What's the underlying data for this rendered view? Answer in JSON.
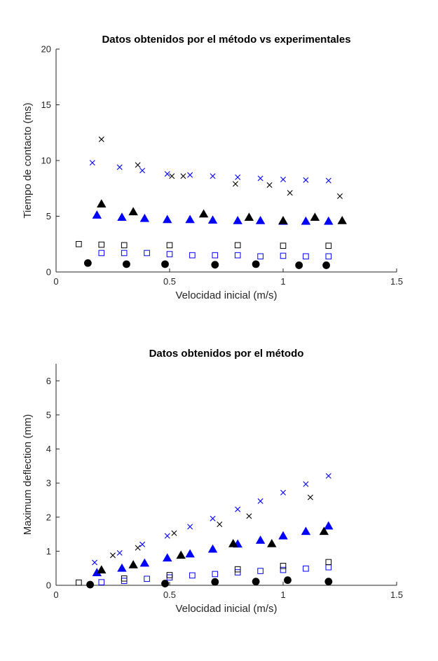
{
  "chart_data": [
    {
      "type": "scatter",
      "title": "Datos obtenidos por el método vs experimentales",
      "xlabel": "Velocidad inicial (m/s)",
      "ylabel": "Tiempo de contacto (ms)",
      "xlim": [
        0,
        1.5
      ],
      "ylim": [
        0,
        20
      ],
      "xticks": [
        0,
        0.5,
        1,
        1.5
      ],
      "xtick_labels": [
        "0",
        "0.5",
        "1",
        "1.5"
      ],
      "yticks": [
        0,
        5,
        10,
        15,
        20
      ],
      "ytick_labels": [
        "0",
        "5",
        "10",
        "15",
        "20"
      ],
      "grid": false,
      "legend": "none",
      "series": [
        {
          "marker": "x",
          "color": "#0000ff",
          "x": [
            0.16,
            0.28,
            0.38,
            0.49,
            0.59,
            0.69,
            0.8,
            0.9,
            1.0,
            1.1,
            1.2
          ],
          "y": [
            9.8,
            9.4,
            9.1,
            8.8,
            8.7,
            8.6,
            8.5,
            8.4,
            8.3,
            8.25,
            8.2
          ]
        },
        {
          "marker": "x",
          "color": "#000000",
          "x": [
            0.2,
            0.36,
            0.51,
            0.56,
            0.79,
            0.94,
            1.03,
            1.25
          ],
          "y": [
            11.9,
            9.6,
            8.6,
            8.6,
            7.9,
            7.8,
            7.1,
            6.8
          ]
        },
        {
          "marker": "triangle",
          "color": "#0000ff",
          "x": [
            0.18,
            0.29,
            0.39,
            0.49,
            0.59,
            0.69,
            0.8,
            0.9,
            1.0,
            1.1,
            1.2
          ],
          "y": [
            5.1,
            4.9,
            4.8,
            4.7,
            4.7,
            4.65,
            4.6,
            4.6,
            4.55,
            4.55,
            4.55
          ]
        },
        {
          "marker": "triangle",
          "color": "#000000",
          "x": [
            0.2,
            0.34,
            0.65,
            0.85,
            1.0,
            1.14,
            1.26
          ],
          "y": [
            6.1,
            5.4,
            5.2,
            4.9,
            4.6,
            4.9,
            4.6
          ]
        },
        {
          "marker": "square",
          "color": "#0000ff",
          "x": [
            0.2,
            0.3,
            0.4,
            0.5,
            0.6,
            0.7,
            0.8,
            0.9,
            1.0,
            1.1,
            1.2
          ],
          "y": [
            1.7,
            1.7,
            1.7,
            1.6,
            1.5,
            1.5,
            1.5,
            1.4,
            1.45,
            1.4,
            1.4
          ]
        },
        {
          "marker": "square",
          "color": "#000000",
          "x": [
            0.1,
            0.2,
            0.3,
            0.5,
            0.8,
            1.0,
            1.2
          ],
          "y": [
            2.5,
            2.45,
            2.4,
            2.4,
            2.4,
            2.35,
            2.35
          ]
        },
        {
          "marker": "circle",
          "color": "#000000",
          "x": [
            0.14,
            0.31,
            0.48,
            0.7,
            0.88,
            1.07,
            1.19
          ],
          "y": [
            0.8,
            0.7,
            0.7,
            0.65,
            0.7,
            0.6,
            0.6
          ]
        }
      ]
    },
    {
      "type": "scatter",
      "title": "Datos obtenidos por el método",
      "xlabel": "Velocidad inicial (m/s)",
      "ylabel": "Maximum deflection (mm)",
      "xlim": [
        0,
        1.5
      ],
      "ylim": [
        0,
        6.5
      ],
      "xticks": [
        0,
        0.5,
        1,
        1.5
      ],
      "xtick_labels": [
        "0",
        "0.5",
        "1",
        "1.5"
      ],
      "yticks": [
        0,
        1,
        2,
        3,
        4,
        5,
        6
      ],
      "ytick_labels": [
        "0",
        "1",
        "2",
        "3",
        "4",
        "5",
        "6"
      ],
      "grid": false,
      "legend": "none",
      "series": [
        {
          "marker": "x",
          "color": "#0000ff",
          "x": [
            0.17,
            0.28,
            0.38,
            0.49,
            0.59,
            0.69,
            0.8,
            0.9,
            1.0,
            1.1,
            1.2
          ],
          "y": [
            0.67,
            0.95,
            1.2,
            1.45,
            1.72,
            1.96,
            2.23,
            2.47,
            2.72,
            2.97,
            3.21
          ]
        },
        {
          "marker": "x",
          "color": "#000000",
          "x": [
            0.25,
            0.36,
            0.52,
            0.72,
            0.85,
            1.12
          ],
          "y": [
            0.88,
            1.1,
            1.53,
            1.79,
            2.03,
            2.58
          ]
        },
        {
          "marker": "triangle",
          "color": "#0000ff",
          "x": [
            0.18,
            0.29,
            0.39,
            0.49,
            0.59,
            0.69,
            0.8,
            0.9,
            1.0,
            1.1,
            1.2
          ],
          "y": [
            0.37,
            0.5,
            0.65,
            0.8,
            0.92,
            1.06,
            1.21,
            1.32,
            1.45,
            1.58,
            1.74
          ]
        },
        {
          "marker": "triangle",
          "color": "#000000",
          "x": [
            0.2,
            0.34,
            0.55,
            0.78,
            0.95,
            1.18
          ],
          "y": [
            0.45,
            0.6,
            0.88,
            1.22,
            1.22,
            1.58
          ]
        },
        {
          "marker": "square",
          "color": "#0000ff",
          "x": [
            0.2,
            0.3,
            0.4,
            0.5,
            0.6,
            0.7,
            0.8,
            0.9,
            1.0,
            1.1,
            1.2
          ],
          "y": [
            0.09,
            0.13,
            0.19,
            0.23,
            0.29,
            0.33,
            0.38,
            0.42,
            0.45,
            0.49,
            0.53
          ]
        },
        {
          "marker": "square",
          "color": "#000000",
          "x": [
            0.1,
            0.3,
            0.5,
            0.8,
            1.0,
            1.2
          ],
          "y": [
            0.08,
            0.2,
            0.3,
            0.47,
            0.57,
            0.68
          ]
        },
        {
          "marker": "circle",
          "color": "#000000",
          "x": [
            0.15,
            0.48,
            0.7,
            0.88,
            1.02,
            1.2
          ],
          "y": [
            0.02,
            0.05,
            0.1,
            0.11,
            0.15,
            0.11
          ]
        }
      ]
    }
  ]
}
